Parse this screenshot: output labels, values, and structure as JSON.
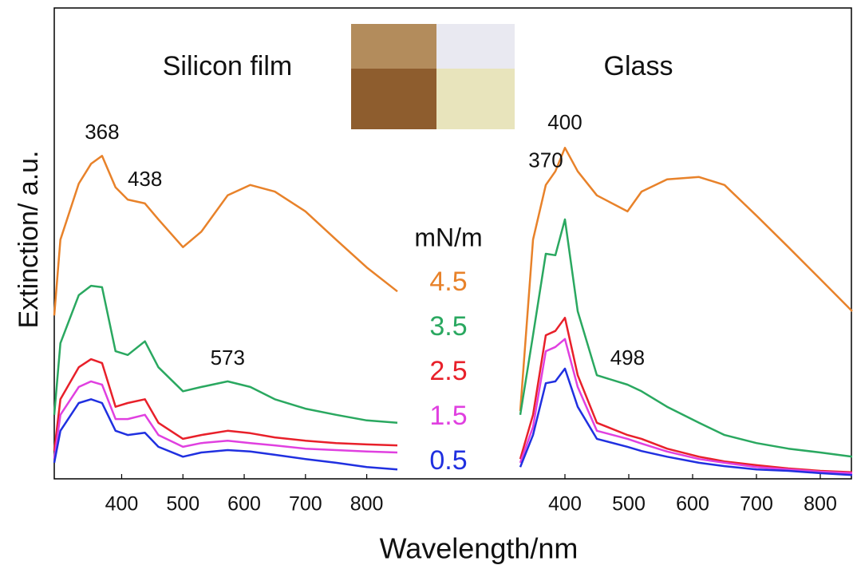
{
  "chart_data": [
    {
      "type": "line",
      "title": "Silicon film",
      "ylabel": "Extinction/ a.u.",
      "xlabel": "Wavelength/nm",
      "legend_title": "mN/m",
      "x": [
        290,
        300,
        330,
        350,
        368,
        390,
        410,
        438,
        460,
        500,
        530,
        573,
        610,
        650,
        700,
        750,
        800,
        850
      ],
      "xlim": [
        290,
        850
      ],
      "xticks": [
        400,
        500,
        600,
        700,
        800
      ],
      "ylim": [
        0,
        100
      ],
      "grid": false,
      "series": [
        {
          "name": "4.5",
          "color": "#e8822a",
          "values": [
            34.7,
            50.8,
            62.7,
            66.9,
            68.6,
            61.9,
            59.3,
            58.5,
            55.1,
            49.2,
            52.5,
            60.2,
            62.4,
            61.0,
            56.8,
            50.8,
            44.9,
            39.8
          ]
        },
        {
          "name": "3.5",
          "color": "#2aa860",
          "values": [
            13.6,
            28.8,
            39.0,
            41.0,
            40.7,
            27.1,
            26.3,
            29.2,
            23.7,
            18.6,
            19.5,
            20.7,
            19.5,
            16.9,
            14.9,
            13.6,
            12.4,
            11.9
          ]
        },
        {
          "name": "2.5",
          "color": "#e8202a",
          "values": [
            5.9,
            16.9,
            23.7,
            25.4,
            24.6,
            15.3,
            16.1,
            16.9,
            11.9,
            8.5,
            9.3,
            10.2,
            9.7,
            8.8,
            8.1,
            7.6,
            7.3,
            7.1
          ]
        },
        {
          "name": "1.5",
          "color": "#e040e0",
          "values": [
            4.2,
            13.6,
            19.5,
            20.7,
            20.0,
            12.7,
            12.7,
            13.6,
            9.3,
            6.8,
            7.6,
            8.1,
            7.6,
            7.1,
            6.4,
            6.1,
            5.8,
            5.6
          ]
        },
        {
          "name": "0.5",
          "color": "#2030e0",
          "values": [
            3.4,
            10.2,
            16.1,
            16.9,
            16.1,
            10.2,
            9.3,
            9.8,
            6.8,
            4.7,
            5.6,
            6.1,
            5.8,
            5.1,
            4.2,
            3.4,
            2.5,
            2.0
          ]
        }
      ],
      "annotations": [
        {
          "text": "368",
          "x": 368,
          "y": 71
        },
        {
          "text": "438",
          "x": 438,
          "y": 61
        },
        {
          "text": "573",
          "x": 573,
          "y": 23
        }
      ]
    },
    {
      "type": "line",
      "title": "Glass",
      "x": [
        330,
        350,
        370,
        385,
        400,
        420,
        450,
        498,
        520,
        560,
        610,
        650,
        700,
        750,
        800,
        850
      ],
      "xlim": [
        310,
        850
      ],
      "xticks": [
        400,
        500,
        600,
        700,
        800
      ],
      "ylim": [
        0,
        100
      ],
      "grid": false,
      "series": [
        {
          "name": "4.5",
          "color": "#e8822a",
          "values": [
            14.4,
            50.8,
            62.4,
            65.3,
            70.3,
            65.3,
            60.2,
            56.8,
            61.0,
            63.6,
            64.1,
            62.4,
            55.9,
            49.2,
            42.4,
            35.6
          ]
        },
        {
          "name": "3.5",
          "color": "#2aa860",
          "values": [
            13.6,
            30.5,
            47.8,
            47.5,
            55.1,
            35.6,
            22.0,
            20.0,
            18.6,
            15.3,
            11.9,
            9.3,
            7.6,
            6.4,
            5.6,
            4.7
          ]
        },
        {
          "name": "2.5",
          "color": "#e8202a",
          "values": [
            4.2,
            13.6,
            30.5,
            31.4,
            34.2,
            22.0,
            11.9,
            9.3,
            8.5,
            6.4,
            4.7,
            3.7,
            2.9,
            2.2,
            1.7,
            1.4
          ]
        },
        {
          "name": "1.5",
          "color": "#e040e0",
          "values": [
            3.4,
            11.0,
            27.1,
            28.0,
            29.7,
            19.5,
            10.2,
            8.5,
            7.5,
            5.8,
            4.2,
            3.4,
            2.5,
            2.0,
            1.5,
            1.2
          ]
        },
        {
          "name": "0.5",
          "color": "#2030e0",
          "values": [
            2.5,
            9.3,
            20.3,
            20.7,
            23.4,
            15.3,
            8.5,
            6.8,
            5.9,
            4.7,
            3.4,
            2.7,
            2.0,
            1.7,
            1.2,
            0.8
          ]
        }
      ],
      "annotations": [
        {
          "text": "370",
          "x": 370,
          "y": 65
        },
        {
          "text": "400",
          "x": 400,
          "y": 73
        },
        {
          "text": "498",
          "x": 498,
          "y": 23
        }
      ]
    }
  ]
}
